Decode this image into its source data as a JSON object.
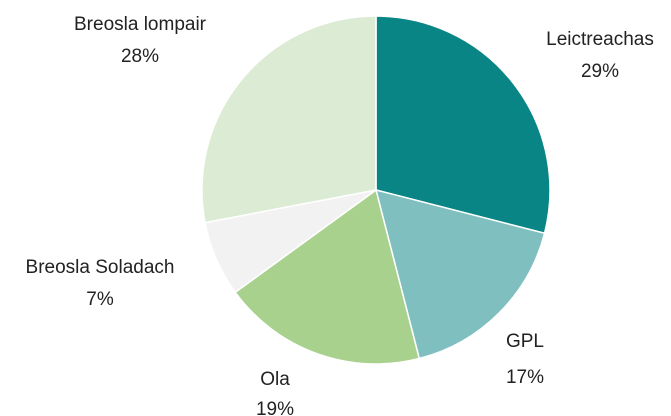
{
  "chart_data": {
    "type": "pie",
    "categories": [
      "Leictreachas",
      "GPL",
      "Ola",
      "Breosla Soladach",
      "Breosla lompair"
    ],
    "values": [
      29,
      17,
      19,
      7,
      28
    ],
    "value_labels": [
      "29%",
      "17%",
      "19%",
      "7%",
      "28%"
    ],
    "colors": [
      "#0a8585",
      "#80bfbf",
      "#a9d18e",
      "#f2f2f2",
      "#dcebd3"
    ]
  }
}
